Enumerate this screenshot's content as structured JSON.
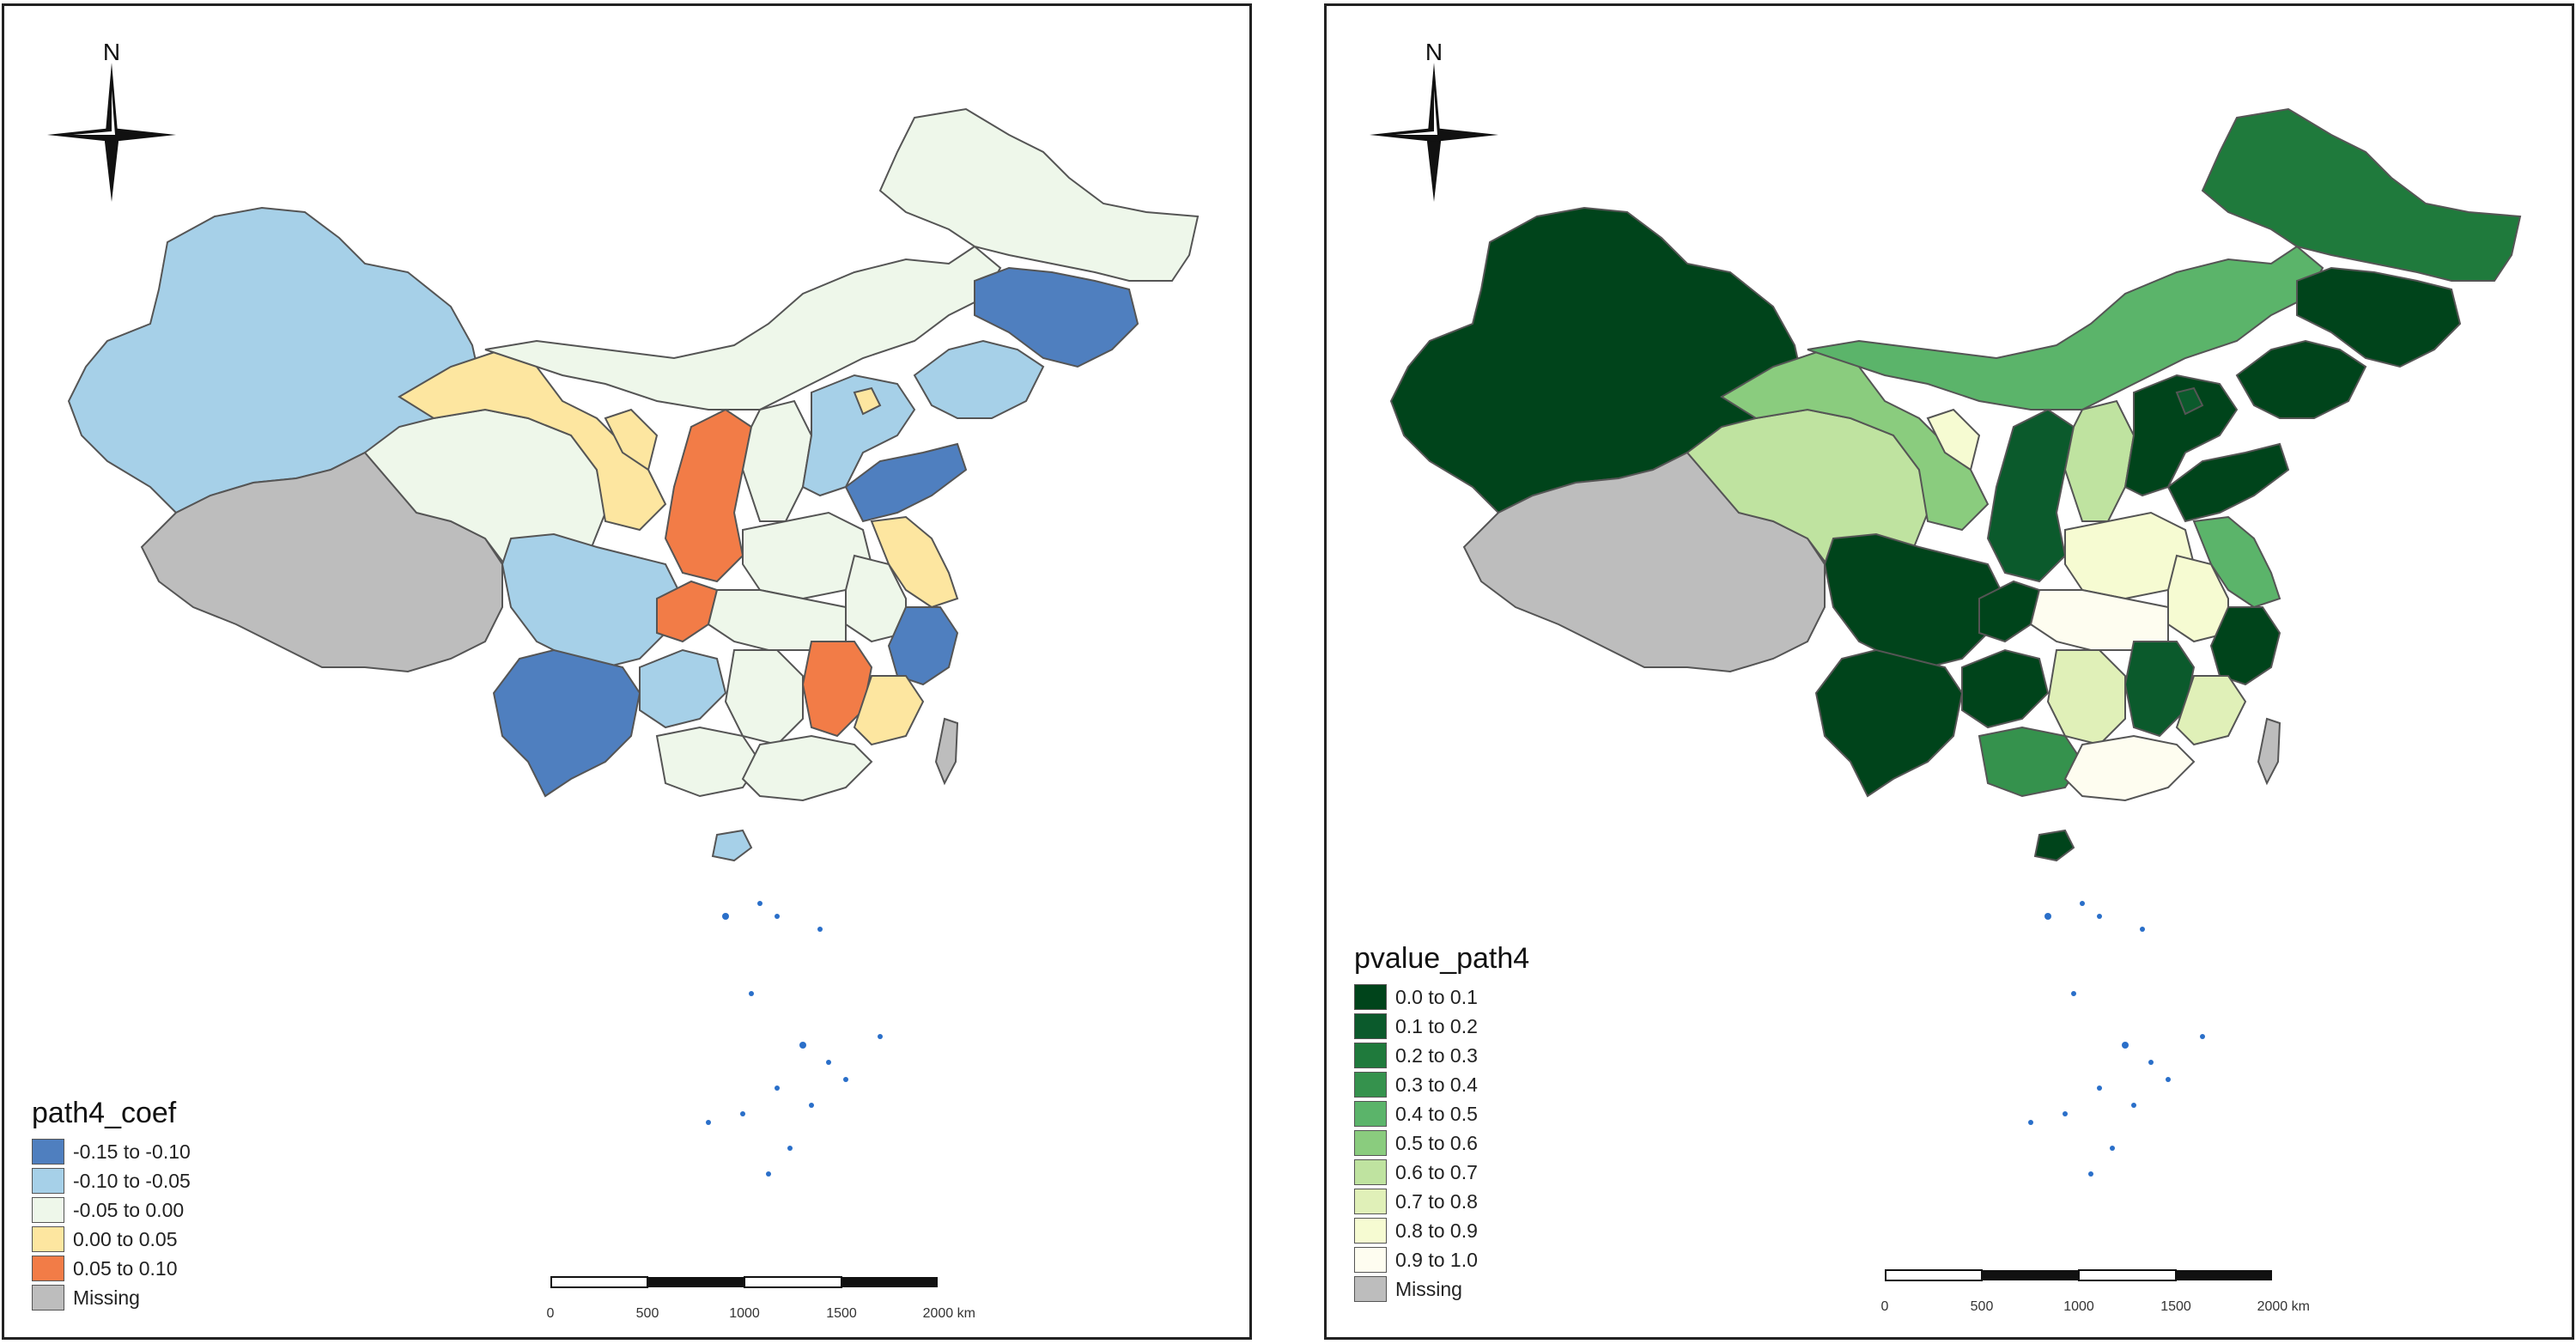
{
  "left_map": {
    "legend_title": "path4_coef",
    "legend": [
      {
        "label": "-0.15 to -0.10",
        "color": "#4f7fbf"
      },
      {
        "label": "-0.10 to -0.05",
        "color": "#a6d0e8"
      },
      {
        "label": "-0.05 to 0.00",
        "color": "#eef7ea"
      },
      {
        "label": "0.00 to 0.05",
        "color": "#fde6a0"
      },
      {
        "label": "0.05 to 0.10",
        "color": "#f27c47"
      },
      {
        "label": "Missing",
        "color": "#bdbdbd"
      }
    ],
    "north_label": "N",
    "scale": {
      "ticks": [
        "0",
        "500",
        "1000",
        "1500",
        "2000 km"
      ]
    }
  },
  "right_map": {
    "legend_title": "pvalue_path4",
    "legend": [
      {
        "label": "0.0 to 0.1",
        "color": "#00441b"
      },
      {
        "label": "0.1 to 0.2",
        "color": "#0b5a2c"
      },
      {
        "label": "0.2 to 0.3",
        "color": "#1f7a3c"
      },
      {
        "label": "0.3 to 0.4",
        "color": "#35924d"
      },
      {
        "label": "0.4 to 0.5",
        "color": "#5bb46a"
      },
      {
        "label": "0.5 to 0.6",
        "color": "#8acc7e"
      },
      {
        "label": "0.6 to 0.7",
        "color": "#bfe3a0"
      },
      {
        "label": "0.7 to 0.8",
        "color": "#e0f0b8"
      },
      {
        "label": "0.8 to 0.9",
        "color": "#f6fbd2"
      },
      {
        "label": "0.9 to 1.0",
        "color": "#fefdf0"
      },
      {
        "label": "Missing",
        "color": "#bdbdbd"
      }
    ],
    "north_label": "N",
    "scale": {
      "ticks": [
        "0",
        "500",
        "1000",
        "1500",
        "2000 km"
      ]
    }
  }
}
